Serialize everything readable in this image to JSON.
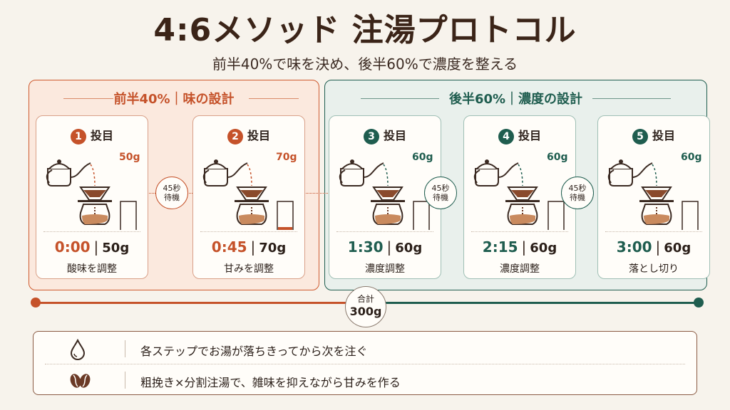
{
  "header": {
    "title": "4:6メソッド 注湯プロトコル",
    "subtitle": "前半40%で味を決め、後半60%で濃度を整える"
  },
  "phases": [
    {
      "title": "前半40%｜味の設計",
      "color": "#c5522a"
    },
    {
      "title": "後半60%｜濃度の設計",
      "color": "#1f5d4f"
    }
  ],
  "pour_suffix": "投目",
  "pours": [
    {
      "number": "1",
      "time": "0:00",
      "amount": "50g",
      "amount_tag": "50g",
      "label": "酸味を調整",
      "fill_fraction": 0.42
    },
    {
      "number": "2",
      "time": "0:45",
      "amount": "70g",
      "amount_tag": "70g",
      "label": "甘みを調整",
      "fill_fraction": 0.55
    },
    {
      "number": "3",
      "time": "1:30",
      "amount": "60g",
      "amount_tag": "60g",
      "label": "濃度調整",
      "fill_fraction": 0.48
    },
    {
      "number": "4",
      "time": "2:15",
      "amount": "60g",
      "amount_tag": "60g",
      "label": "濃度調整",
      "fill_fraction": 0.48
    },
    {
      "number": "5",
      "time": "3:00",
      "amount": "60g",
      "amount_tag": "60g",
      "label": "落とし切り",
      "fill_fraction": 0.48
    }
  ],
  "waits": [
    {
      "line1": "45秒",
      "line2": "待機"
    },
    {
      "line1": "45秒",
      "line2": "待機"
    },
    {
      "line1": "45秒",
      "line2": "待機"
    }
  ],
  "total": {
    "label": "合計",
    "value": "300g"
  },
  "notes": [
    {
      "icon": "water-drop-icon",
      "text": "各ステップでお湯が落ちきってから次を注ぐ"
    },
    {
      "icon": "coffee-bean-icon",
      "text": "粗挽き×分割注湯で、雑味を抑えながら甘みを作る"
    }
  ],
  "colors": {
    "accent_orange": "#c5522a",
    "accent_green": "#1f5d4f",
    "brown": "#8a5a42",
    "background": "#f7f3ec"
  }
}
